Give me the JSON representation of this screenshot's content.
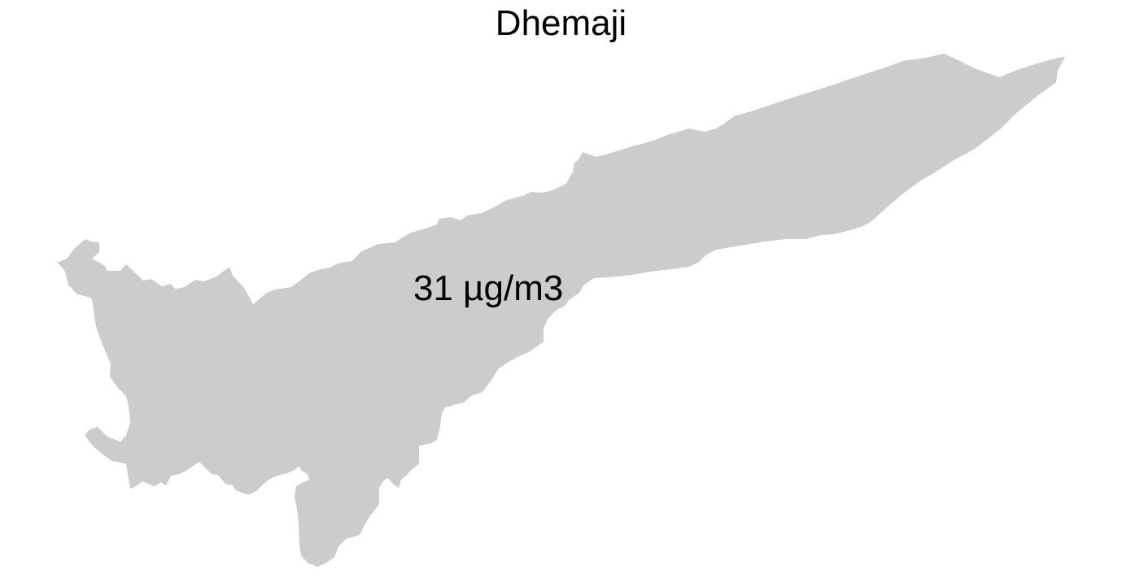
{
  "map": {
    "title": "Dhemaji",
    "region_label": "31 µg/m3",
    "region_fill": "#cccccc",
    "background": "#ffffff"
  }
}
